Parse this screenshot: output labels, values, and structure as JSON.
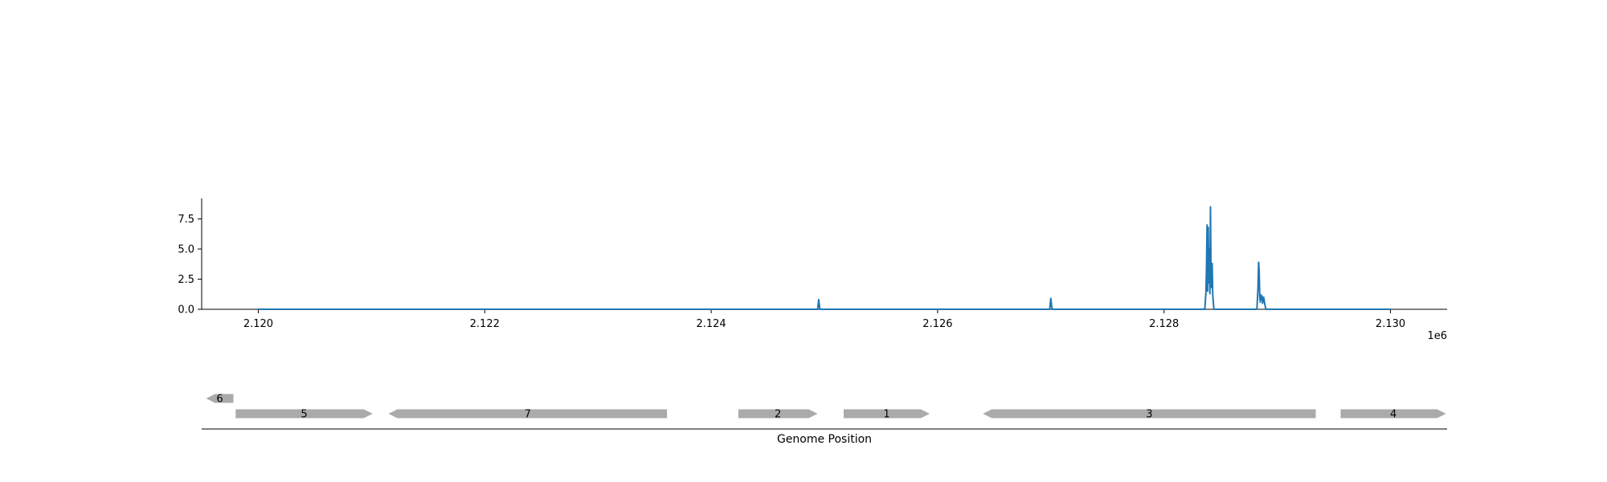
{
  "chart_data": [
    {
      "type": "line",
      "color": "#1f77b4",
      "xlim": [
        2119500,
        2130500
      ],
      "ylim": [
        0,
        9.2
      ],
      "x_ticks": [
        2120000,
        2122000,
        2124000,
        2126000,
        2128000,
        2130000
      ],
      "x_tick_labels": [
        "2.120",
        "2.122",
        "2.124",
        "2.126",
        "2.128",
        "2.130"
      ],
      "y_ticks": [
        0,
        2.5,
        5,
        7.5
      ],
      "y_tick_labels": [
        "0.0",
        "2.5",
        "5.0",
        "7.5"
      ],
      "offset_label": "1e6",
      "grid": false,
      "series": [
        {
          "x": [
            2120000,
            2124940,
            2124950,
            2124960,
            2126990,
            2127000,
            2127010,
            2128360,
            2128370,
            2128375,
            2128380,
            2128385,
            2128390,
            2128395,
            2128400,
            2128405,
            2128410,
            2128415,
            2128420,
            2128425,
            2128430,
            2128440,
            2128450,
            2128820,
            2128830,
            2128835,
            2128840,
            2128845,
            2128850,
            2128855,
            2128860,
            2128865,
            2128870,
            2128880,
            2128890,
            2128900,
            2130000
          ],
          "y": [
            0,
            0,
            0.8,
            0,
            0,
            0.9,
            0,
            0,
            1.4,
            3.5,
            7.0,
            1.5,
            6.8,
            2.2,
            5.0,
            1.3,
            8.5,
            2.5,
            1.8,
            3.8,
            1.2,
            0,
            0,
            0,
            1.8,
            3.9,
            3.2,
            1.0,
            0.6,
            1.2,
            0.8,
            1.1,
            0.5,
            1.0,
            0.4,
            0,
            0
          ]
        }
      ]
    },
    {
      "type": "gene-track",
      "xlabel": "Genome Position",
      "genes": [
        {
          "label": "6",
          "start": 2119540,
          "end": 2119780,
          "strand": "-",
          "row": 1
        },
        {
          "label": "5",
          "start": 2119800,
          "end": 2121010,
          "strand": "+",
          "row": 0
        },
        {
          "label": "7",
          "start": 2121150,
          "end": 2123610,
          "strand": "-",
          "row": 0
        },
        {
          "label": "2",
          "start": 2124240,
          "end": 2124940,
          "strand": "+",
          "row": 0
        },
        {
          "label": "1",
          "start": 2125170,
          "end": 2125930,
          "strand": "+",
          "row": 0
        },
        {
          "label": "3",
          "start": 2126400,
          "end": 2129340,
          "strand": "-",
          "row": 0
        },
        {
          "label": "4",
          "start": 2129560,
          "end": 2130490,
          "strand": "+",
          "row": 0
        }
      ],
      "gene_color": "#aaaaaa"
    }
  ]
}
